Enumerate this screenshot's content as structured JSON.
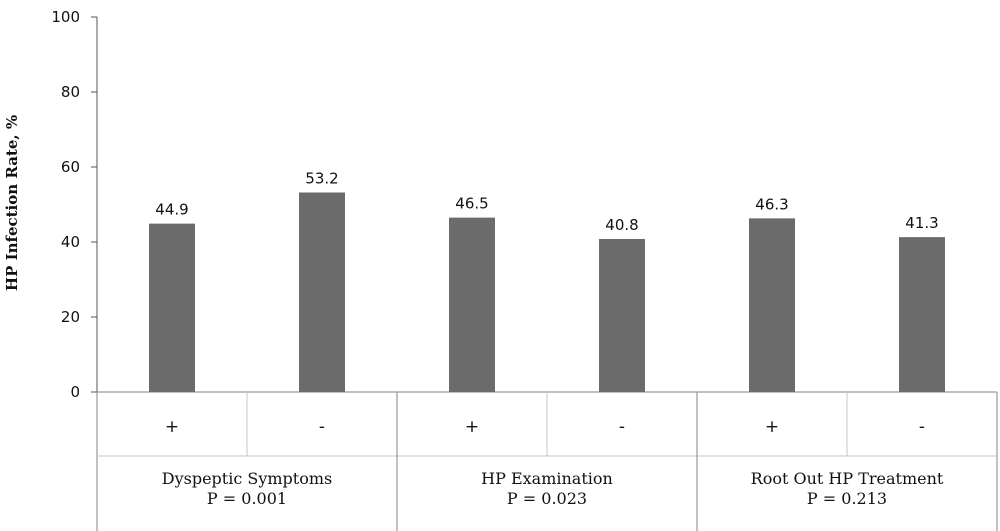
{
  "chart_data": {
    "type": "bar",
    "ylabel": "HP Infection Rate, %",
    "xlabel": "",
    "title": "",
    "ylim": [
      0,
      100
    ],
    "yticks": [
      0,
      20,
      40,
      60,
      80,
      100
    ],
    "grid": false,
    "bar_color": "#6b6b6b",
    "groups": [
      {
        "name": "Dyspeptic Symptoms",
        "p_value": "P = 0.001",
        "categories": [
          "+",
          "-"
        ],
        "values": [
          44.9,
          53.2
        ],
        "value_labels": [
          "44.9",
          "53.2"
        ]
      },
      {
        "name": "HP Examination",
        "p_value": "P = 0.023",
        "categories": [
          "+",
          "-"
        ],
        "values": [
          46.5,
          40.8
        ],
        "value_labels": [
          "46.5",
          "40.8"
        ]
      },
      {
        "name": "Root Out HP Treatment",
        "p_value": "P = 0.213",
        "categories": [
          "+",
          "-"
        ],
        "values": [
          46.3,
          41.3
        ],
        "value_labels": [
          "46.3",
          "41.3"
        ]
      }
    ]
  }
}
